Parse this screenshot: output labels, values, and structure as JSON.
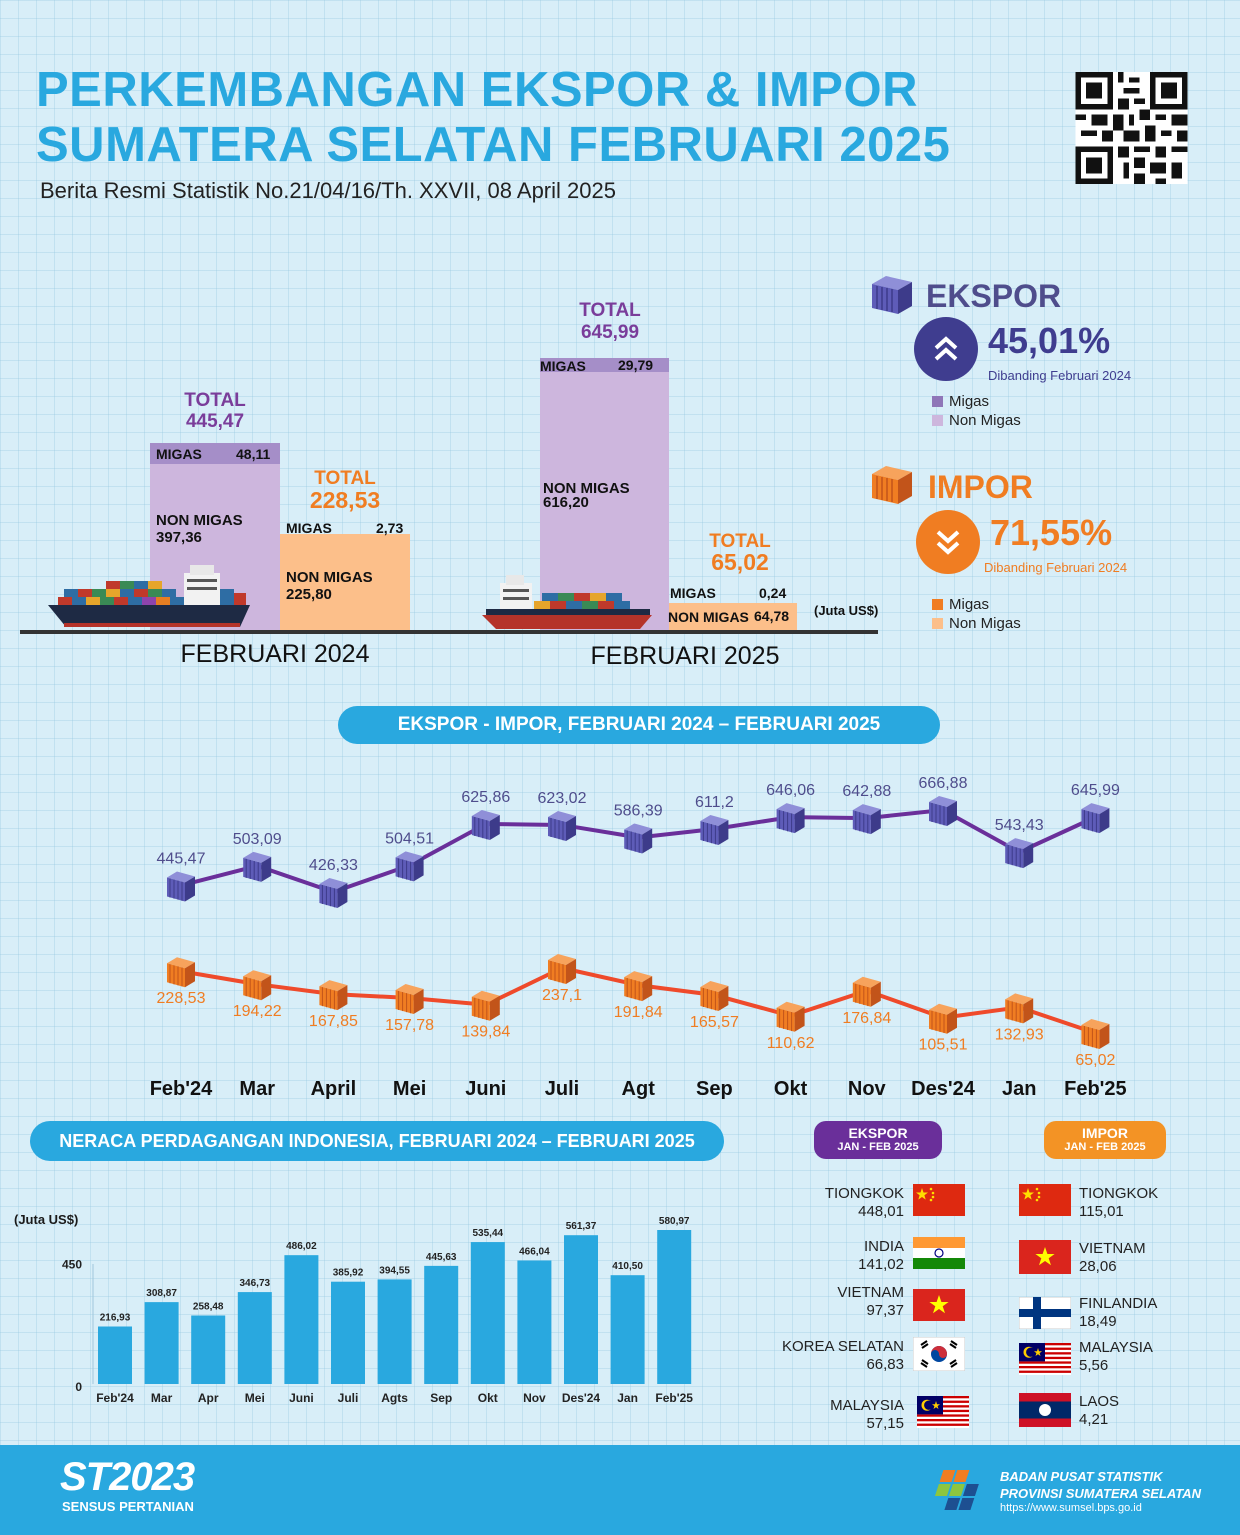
{
  "header": {
    "title_line1": "PERKEMBANGAN EKSPOR & IMPOR",
    "title_line2": "SUMATERA SELATAN FEBRUARI 2025",
    "subtitle": "Berita Resmi Statistik No.21/04/16/Th. XXVII, 08 April 2025"
  },
  "comparison": {
    "unit": "(Juta US$)",
    "total_label": "TOTAL",
    "migas_label": "MIGAS",
    "nonmigas_label": "NON MIGAS",
    "periods": [
      {
        "label": "FEBRUARI 2024",
        "ekspor": {
          "total": "445,47",
          "migas": "48,11",
          "non_migas": "397,36"
        },
        "impor": {
          "total": "228,53",
          "migas": "2,73",
          "non_migas": "225,80"
        }
      },
      {
        "label": "FEBRUARI 2025",
        "ekspor": {
          "total": "645,99",
          "migas": "29,79",
          "non_migas": "616,20"
        },
        "impor": {
          "total": "65,02",
          "migas": "0,24",
          "non_migas": "64,78"
        }
      }
    ]
  },
  "legend": {
    "ekspor": {
      "title": "EKSPOR",
      "change": "45,01%",
      "note": "Dibanding Februari 2024",
      "migas": "Migas",
      "non_migas": "Non Migas"
    },
    "impor": {
      "title": "IMPOR",
      "change": "71,55%",
      "note": "Dibanding Februari 2024",
      "migas": "Migas",
      "non_migas": "Non Migas"
    }
  },
  "trend_title": "EKSPOR - IMPOR, FEBRUARI 2024 – FEBRUARI 2025",
  "neraca_title": "NERACA PERDAGANGAN INDONESIA, FEBRUARI 2024 – FEBRUARI 2025",
  "neraca_unit": "(Juta US$)",
  "chart_data": [
    {
      "type": "line",
      "categories": [
        "Feb'24",
        "Mar",
        "April",
        "Mei",
        "Juni",
        "Juli",
        "Agt",
        "Sep",
        "Okt",
        "Nov",
        "Des'24",
        "Jan",
        "Feb'25"
      ],
      "series": [
        {
          "name": "Ekspor",
          "values": [
            445.47,
            503.09,
            426.33,
            504.51,
            625.86,
            623.02,
            586.39,
            611.2,
            646.06,
            642.88,
            666.88,
            543.43,
            645.99
          ],
          "labels": [
            "445,47",
            "503,09",
            "426,33",
            "504,51",
            "625,86",
            "623,02",
            "586,39",
            "611,2",
            "646,06",
            "642,88",
            "666,88",
            "543,43",
            "645,99"
          ]
        },
        {
          "name": "Impor",
          "values": [
            228.53,
            194.22,
            167.85,
            157.78,
            139.84,
            237.1,
            191.84,
            165.57,
            110.62,
            176.84,
            105.51,
            132.93,
            65.02
          ],
          "labels": [
            "228,53",
            "194,22",
            "167,85",
            "157,78",
            "139,84",
            "237,1",
            "191,84",
            "165,57",
            "110,62",
            "176,84",
            "105,51",
            "132,93",
            "65,02"
          ]
        }
      ]
    },
    {
      "type": "bar",
      "categories": [
        "Feb'24",
        "Mar",
        "Apr",
        "Mei",
        "Juni",
        "Juli",
        "Agts",
        "Sep",
        "Okt",
        "Nov",
        "Des'24",
        "Jan",
        "Feb'25"
      ],
      "values": [
        216.93,
        308.87,
        258.48,
        346.73,
        486.02,
        385.92,
        394.55,
        445.63,
        535.44,
        466.04,
        561.37,
        410.5,
        580.97
      ],
      "labels": [
        "216,93",
        "308,87",
        "258,48",
        "346,73",
        "486,02",
        "385,92",
        "394,55",
        "445,63",
        "535,44",
        "466,04",
        "561,37",
        "410,50",
        "580,97"
      ],
      "ylabel": "(Juta US$)",
      "yticks": [
        "0",
        "450"
      ]
    }
  ],
  "partners": {
    "ekspor_tag": {
      "line1": "EKSPOR",
      "line2": "JAN - FEB 2025"
    },
    "impor_tag": {
      "line1": "IMPOR",
      "line2": "JAN - FEB 2025"
    },
    "ekspor": [
      {
        "name": "TIONGKOK",
        "value": "448,01",
        "flag": "china"
      },
      {
        "name": "INDIA",
        "value": "141,02",
        "flag": "india"
      },
      {
        "name": "VIETNAM",
        "value": "97,37",
        "flag": "vietnam"
      },
      {
        "name": "KOREA SELATAN",
        "value": "66,83",
        "flag": "korea"
      },
      {
        "name": "MALAYSIA",
        "value": "57,15",
        "flag": "malaysia"
      }
    ],
    "impor": [
      {
        "name": "TIONGKOK",
        "value": "115,01",
        "flag": "china"
      },
      {
        "name": "VIETNAM",
        "value": "28,06",
        "flag": "vietnam"
      },
      {
        "name": "FINLANDIA",
        "value": "18,49",
        "flag": "finland"
      },
      {
        "name": "MALAYSIA",
        "value": "5,56",
        "flag": "malaysia"
      },
      {
        "name": "LAOS",
        "value": "4,21",
        "flag": "laos"
      }
    ]
  },
  "footer": {
    "logo_text": "ST2023",
    "logo_sub": "SENSUS PERTANIAN",
    "org1": "BADAN PUSAT STATISTIK",
    "org2": "PROVINSI SUMATERA SELATAN",
    "url": "https://www.sumsel.bps.go.id"
  },
  "colors": {
    "accent": "#29a8df",
    "purple": "#7a3d9a",
    "lilac": "#cdb6dd",
    "migas_purple": "#a58ec8",
    "orange": "#f07d22",
    "peach": "#fcbf8a",
    "line_purple": "#6a2f9a",
    "line_orange": "#ef4a2b"
  }
}
